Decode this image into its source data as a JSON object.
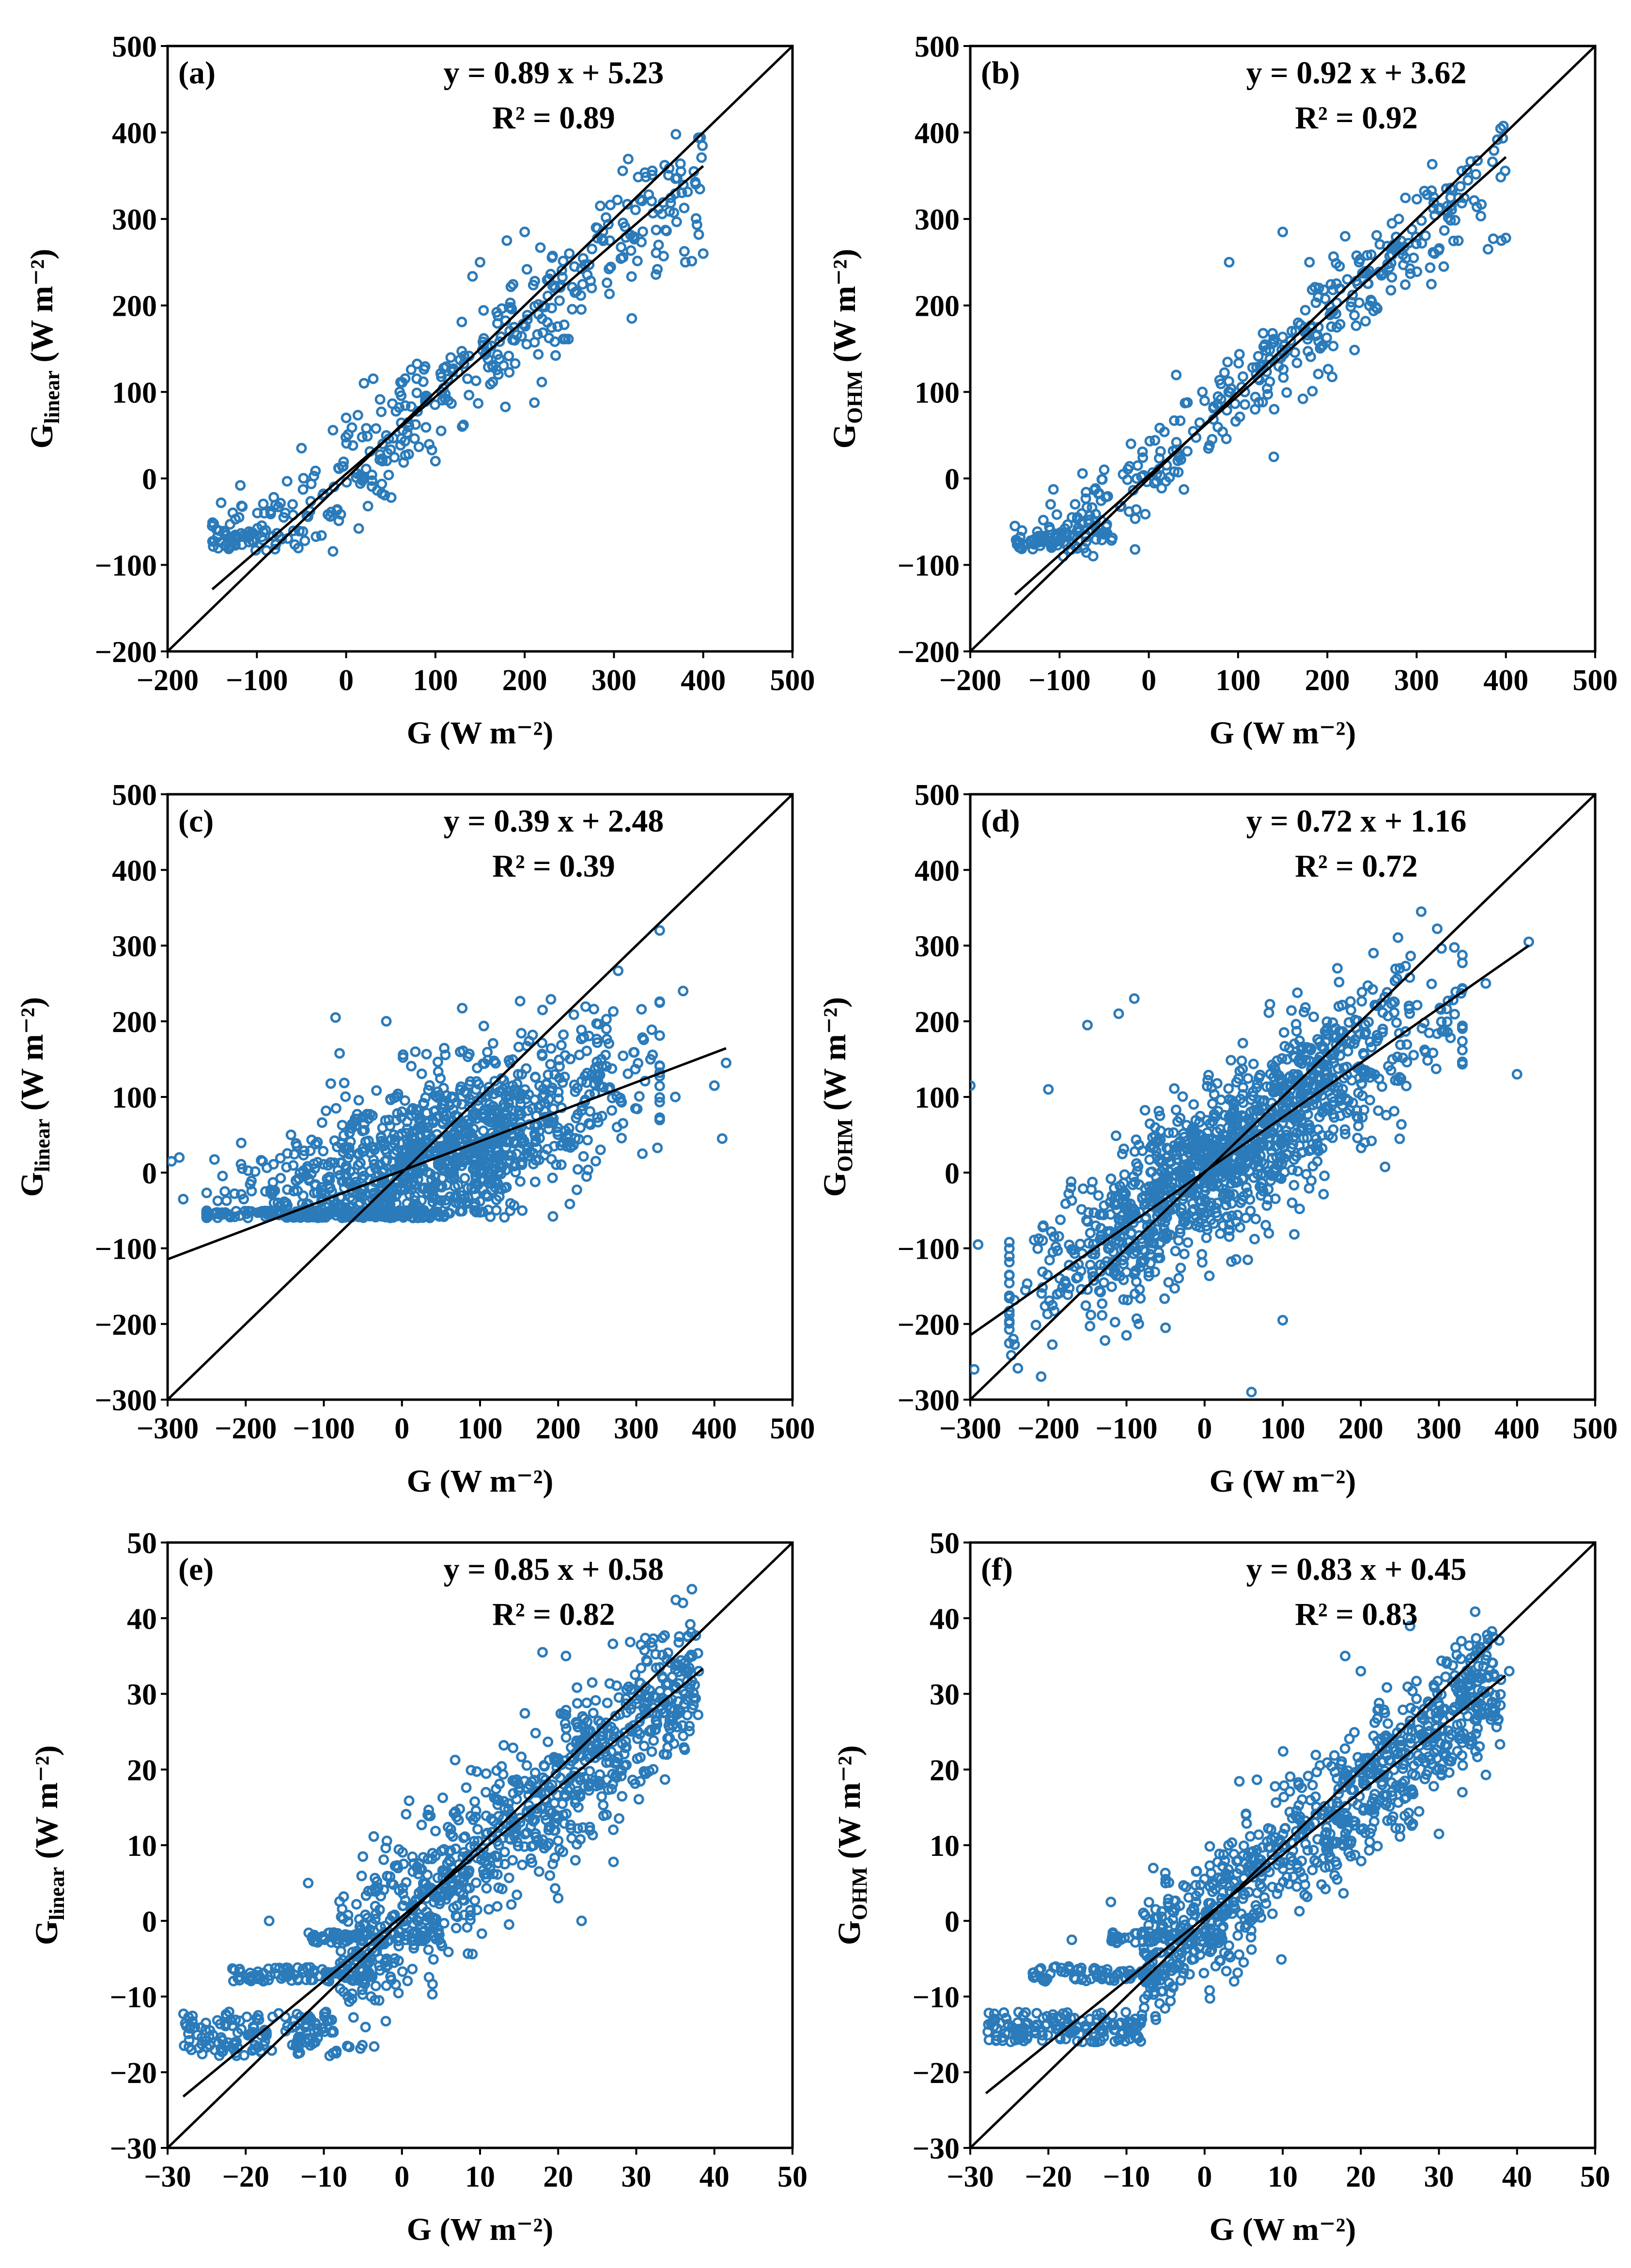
{
  "figure": {
    "marker_color": "#2b7bba",
    "line_color": "#000000"
  },
  "chart_data": [
    {
      "type": "scatter",
      "id": "a",
      "panel_label": "(a)",
      "equation": "y = 0.89 x + 5.23",
      "r2": "R² = 0.89",
      "fit": {
        "slope": 0.89,
        "intercept": 5.23,
        "x_range": [
          -150,
          400
        ]
      },
      "one_to_one": true,
      "xlabel": "G (W m⁻²)",
      "ylabel": {
        "main": "G",
        "sub": "linear",
        "unit": " (W m⁻²)"
      },
      "xlim": [
        -200,
        500
      ],
      "ylim": [
        -200,
        500
      ],
      "xticks": [
        "−200",
        "−100",
        "0",
        "100",
        "200",
        "300",
        "400",
        "500"
      ],
      "yticks": [
        "−200",
        "−100",
        "0",
        "100",
        "200",
        "300",
        "400",
        "500"
      ],
      "tick_step": 100,
      "cloud": {
        "n": 420,
        "x_range": [
          -150,
          400
        ],
        "density": "uniform",
        "spread": 35,
        "seed": 11
      },
      "points": [
        [
          -150,
          -55
        ],
        [
          -120,
          -45
        ],
        [
          -90,
          -60
        ],
        [
          -70,
          -45
        ],
        [
          -60,
          -30
        ],
        [
          -50,
          35
        ],
        [
          0,
          70
        ],
        [
          20,
          110
        ],
        [
          60,
          100
        ],
        [
          100,
          20
        ],
        [
          130,
          60
        ],
        [
          150,
          250
        ],
        [
          180,
          275
        ],
        [
          200,
          285
        ],
        [
          250,
          260
        ],
        [
          280,
          290
        ],
        [
          320,
          185
        ],
        [
          350,
          270
        ],
        [
          380,
          250
        ],
        [
          395,
          282
        ],
        [
          400,
          260
        ]
      ]
    },
    {
      "type": "scatter",
      "id": "b",
      "panel_label": "(b)",
      "equation": "y = 0.92 x + 3.62",
      "r2": "R² = 0.92",
      "fit": {
        "slope": 0.92,
        "intercept": 3.62,
        "x_range": [
          -150,
          400
        ]
      },
      "one_to_one": true,
      "xlabel": "G (W m⁻²)",
      "ylabel": {
        "main": "G",
        "sub": "OHM",
        "unit": " (W m⁻²)"
      },
      "xlim": [
        -200,
        500
      ],
      "ylim": [
        -200,
        500
      ],
      "xticks": [
        "−200",
        "−100",
        "0",
        "100",
        "200",
        "300",
        "400",
        "500"
      ],
      "yticks": [
        "−200",
        "−100",
        "0",
        "100",
        "200",
        "300",
        "400",
        "500"
      ],
      "tick_step": 100,
      "cloud": {
        "n": 420,
        "x_range": [
          -150,
          400
        ],
        "density": "uniform",
        "spread": 28,
        "seed": 23
      },
      "points": [
        [
          -150,
          -55
        ],
        [
          -110,
          -30
        ],
        [
          -80,
          -45
        ],
        [
          -50,
          10
        ],
        [
          -20,
          40
        ],
        [
          60,
          100
        ],
        [
          90,
          250
        ],
        [
          140,
          25
        ],
        [
          150,
          285
        ],
        [
          180,
          250
        ],
        [
          220,
          280
        ],
        [
          280,
          300
        ],
        [
          320,
          260
        ],
        [
          380,
          265
        ],
        [
          395,
          275
        ],
        [
          400,
          278
        ]
      ]
    },
    {
      "type": "scatter",
      "id": "c",
      "panel_label": "(c)",
      "equation": "y = 0.39 x + 2.48",
      "r2": "R² = 0.39",
      "fit": {
        "slope": 0.39,
        "intercept": 2.48,
        "x_range": [
          -300,
          415
        ]
      },
      "one_to_one": true,
      "xlabel": "G (W m⁻²)",
      "ylabel": {
        "main": "G",
        "sub": "linear",
        "unit": " (W m⁻²)"
      },
      "xlim": [
        -300,
        500
      ],
      "ylim": [
        -300,
        500
      ],
      "xticks": [
        "−300",
        "−200",
        "−100",
        "0",
        "100",
        "200",
        "300",
        "400",
        "500"
      ],
      "yticks": [
        "−300",
        "−200",
        "−100",
        "0",
        "100",
        "200",
        "300",
        "400",
        "500"
      ],
      "tick_step": 100,
      "cloud": {
        "n": 1300,
        "x_range": [
          -250,
          330
        ],
        "density": "center",
        "spread": 55,
        "seed": 37
      },
      "points": [
        [
          -295,
          15
        ],
        [
          -285,
          20
        ],
        [
          -280,
          -35
        ],
        [
          -85,
          205
        ],
        [
          -20,
          200
        ],
        [
          180,
          215
        ],
        [
          330,
          320
        ],
        [
          360,
          240
        ],
        [
          350,
          100
        ],
        [
          400,
          115
        ],
        [
          410,
          45
        ],
        [
          415,
          145
        ]
      ]
    },
    {
      "type": "scatter",
      "id": "d",
      "panel_label": "(d)",
      "equation": "y = 0.72 x + 1.16",
      "r2": "R² = 0.72",
      "fit": {
        "slope": 0.72,
        "intercept": 1.16,
        "x_range": [
          -300,
          415
        ]
      },
      "one_to_one": true,
      "xlabel": "G (W m⁻²)",
      "ylabel": {
        "main": "G",
        "sub": "OHM",
        "unit": " (W m⁻²)"
      },
      "xlim": [
        -300,
        500
      ],
      "ylim": [
        -300,
        500
      ],
      "xticks": [
        "−300",
        "−200",
        "−100",
        "0",
        "100",
        "200",
        "300",
        "400",
        "500"
      ],
      "yticks": [
        "−300",
        "−200",
        "−100",
        "0",
        "100",
        "200",
        "300",
        "400",
        "500"
      ],
      "tick_step": 100,
      "cloud": {
        "n": 1300,
        "x_range": [
          -250,
          330
        ],
        "density": "center",
        "spread": 55,
        "seed": 53
      },
      "points": [
        [
          -300,
          115
        ],
        [
          -295,
          -260
        ],
        [
          -290,
          -95
        ],
        [
          -200,
          110
        ],
        [
          -150,
          195
        ],
        [
          -110,
          210
        ],
        [
          -90,
          230
        ],
        [
          -100,
          -215
        ],
        [
          -50,
          -205
        ],
        [
          60,
          -290
        ],
        [
          100,
          -195
        ],
        [
          170,
          270
        ],
        [
          250,
          270
        ],
        [
          360,
          250
        ],
        [
          400,
          130
        ],
        [
          415,
          305
        ]
      ]
    },
    {
      "type": "scatter",
      "id": "e",
      "panel_label": "(e)",
      "equation": "y = 0.85 x + 0.58",
      "r2": "R² = 0.82",
      "fit": {
        "slope": 0.85,
        "intercept": 0.58,
        "x_range": [
          -28,
          38.5
        ]
      },
      "one_to_one": true,
      "xlabel": "G (W m⁻²)",
      "ylabel": {
        "main": "G",
        "sub": "linear",
        "unit": " (W m⁻²)"
      },
      "xlim": [
        -30,
        50
      ],
      "ylim": [
        -30,
        50
      ],
      "xticks": [
        "−30",
        "−20",
        "−10",
        "0",
        "10",
        "20",
        "30",
        "40",
        "50"
      ],
      "yticks": [
        "−30",
        "−20",
        "−10",
        "0",
        "10",
        "20",
        "30",
        "40",
        "50"
      ],
      "tick_step": 10,
      "cloud": {
        "n": 850,
        "x_range": [
          -8,
          38
        ],
        "density": "uniform",
        "spread": 5,
        "seed": 71
      },
      "bands": [
        {
          "x_range": [
            -28,
            -8
          ],
          "y_range": [
            -18,
            -12
          ],
          "n": 150
        },
        {
          "x_range": [
            -22,
            -5
          ],
          "y_range": [
            -8,
            -6
          ],
          "n": 90
        },
        {
          "x_range": [
            -12,
            5
          ],
          "y_range": [
            -3,
            -1.5
          ],
          "n": 70
        }
      ],
      "points": [
        [
          -17,
          0
        ],
        [
          -12,
          5
        ],
        [
          -5,
          8.5
        ],
        [
          18,
          35.5
        ],
        [
          21,
          35
        ],
        [
          33,
          33.5
        ],
        [
          35,
          34
        ],
        [
          38,
          33
        ],
        [
          20,
          3
        ],
        [
          23,
          0
        ]
      ]
    },
    {
      "type": "scatter",
      "id": "f",
      "panel_label": "(f)",
      "equation": "y = 0.83 x + 0.45",
      "r2": "R² = 0.83",
      "fit": {
        "slope": 0.83,
        "intercept": 0.45,
        "x_range": [
          -28,
          38.5
        ]
      },
      "one_to_one": true,
      "xlabel": "G (W m⁻²)",
      "ylabel": {
        "main": "G",
        "sub": "OHM",
        "unit": " (W m⁻²)"
      },
      "xlim": [
        -30,
        50
      ],
      "ylim": [
        -30,
        50
      ],
      "xticks": [
        "−30",
        "−20",
        "−10",
        "0",
        "10",
        "20",
        "30",
        "40",
        "50"
      ],
      "yticks": [
        "−30",
        "−20",
        "−10",
        "0",
        "10",
        "20",
        "30",
        "40",
        "50"
      ],
      "tick_step": 10,
      "cloud": {
        "n": 850,
        "x_range": [
          -8,
          38
        ],
        "density": "uniform",
        "spread": 4.5,
        "seed": 89
      },
      "bands": [
        {
          "x_range": [
            -28,
            -8
          ],
          "y_range": [
            -16,
            -12
          ],
          "n": 150
        },
        {
          "x_range": [
            -22,
            -5
          ],
          "y_range": [
            -8,
            -6
          ],
          "n": 90
        },
        {
          "x_range": [
            -12,
            3
          ],
          "y_range": [
            -3,
            -1.5
          ],
          "n": 70
        }
      ],
      "points": [
        [
          -17,
          -2.5
        ],
        [
          -12,
          2.5
        ],
        [
          -5,
          5
        ],
        [
          18,
          35
        ],
        [
          20,
          33
        ],
        [
          31,
          34
        ],
        [
          36,
          34.5
        ],
        [
          39,
          33
        ],
        [
          30,
          11.5
        ],
        [
          33,
          17
        ]
      ]
    }
  ]
}
